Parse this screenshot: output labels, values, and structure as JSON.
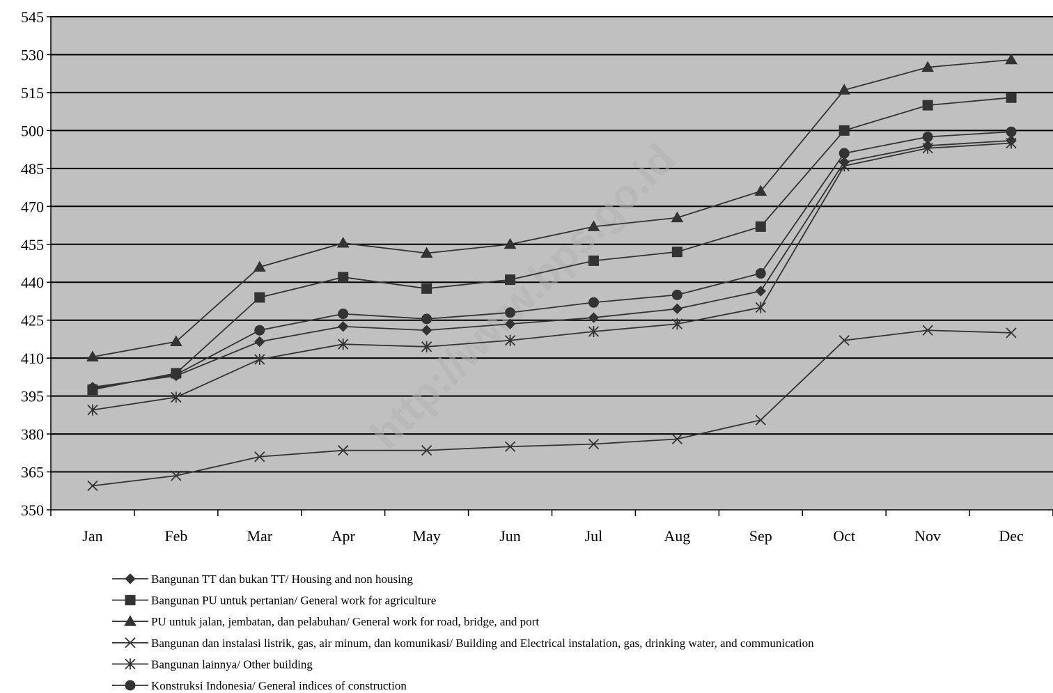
{
  "chart_data": {
    "type": "line",
    "title": "",
    "xlabel": "",
    "ylabel": "",
    "categories": [
      "Jan",
      "Feb",
      "Mar",
      "Apr",
      "May",
      "Jun",
      "Jul",
      "Aug",
      "Sep",
      "Oct",
      "Nov",
      "Dec"
    ],
    "ylim": [
      350,
      545
    ],
    "yticks": [
      "545",
      "530",
      "515",
      "500",
      "485",
      "470",
      "455",
      "440",
      "425",
      "410",
      "395",
      "380",
      "365",
      "350"
    ],
    "grid": true,
    "legend_position": "bottom",
    "series": [
      {
        "name": "Bangunan TT dan bukan TT/ Housing and non housing",
        "marker": "diamond",
        "values": [
          398.5,
          403,
          416.5,
          422.5,
          421,
          423.5,
          426,
          429.5,
          436.5,
          487.5,
          494,
          496
        ]
      },
      {
        "name": "Bangunan PU untuk pertanian/ General work for agriculture",
        "marker": "square",
        "values": [
          397.5,
          404,
          434,
          442,
          437.5,
          441,
          448.5,
          452,
          462,
          500,
          510,
          513
        ]
      },
      {
        "name": "PU untuk  jalan, jembatan, dan pelabuhan/ General work for road, bridge, and port",
        "marker": "triangle",
        "values": [
          410.5,
          416.5,
          446,
          455.5,
          451.5,
          455,
          462,
          465.5,
          476,
          516,
          525,
          528
        ]
      },
      {
        "name": "Bangunan dan instalasi listrik, gas, air minum, dan komunikasi/ Building and Electrical instalation, gas, drinking water, and communication",
        "marker": "x",
        "values": [
          359.5,
          363.5,
          371,
          373.5,
          373.5,
          375,
          376,
          378,
          385.5,
          417,
          421,
          420
        ]
      },
      {
        "name": "Bangunan lainnya/ Other building",
        "marker": "star",
        "values": [
          389.5,
          394.5,
          409.5,
          415.5,
          414.5,
          417,
          420.5,
          423.5,
          430,
          486,
          493,
          495
        ]
      },
      {
        "name": "Konstruksi Indonesia/ General indices of construction",
        "marker": "circle",
        "values": [
          398,
          403.5,
          421,
          427.5,
          425.5,
          428,
          432,
          435,
          443.5,
          491,
          497.5,
          499.5
        ]
      }
    ],
    "colors": {
      "plot_background": "#c0c0c0",
      "line": "#333333",
      "grid": "#000000"
    }
  },
  "watermark": "http://www.bps.go.id"
}
